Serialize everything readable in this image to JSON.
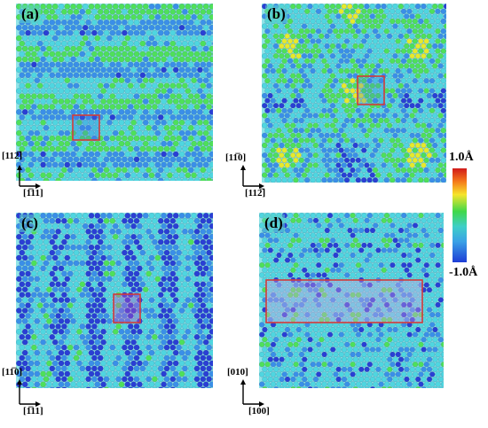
{
  "panels": [
    {
      "id": "a",
      "label": "(a)",
      "pattern": "stripes",
      "highlight": "small-square"
    },
    {
      "id": "b",
      "label": "(b)",
      "pattern": "hexagonal-domains",
      "highlight": "small-square"
    },
    {
      "id": "c",
      "label": "(c)",
      "pattern": "vertical-bands",
      "highlight": "small-square"
    },
    {
      "id": "d",
      "label": "(d)",
      "pattern": "grid-clusters",
      "highlight": "wide-rectangle"
    }
  ],
  "axes": {
    "a": {
      "vertical": "[11̅ 2̅]",
      "vertical_text": "[112̅]",
      "horizontal": "[1̅11]"
    },
    "b": {
      "vertical": "[11̅0]",
      "horizontal": "[112̅]"
    },
    "c": {
      "vertical": "[11̅0]",
      "horizontal": "[1̅11]"
    },
    "d": {
      "vertical": "[010]",
      "horizontal": "[100]"
    }
  },
  "colorbar": {
    "max_label": "1.0Å",
    "min_label": "-1.0Å",
    "colors": [
      "#d11a1a",
      "#f57a1a",
      "#f6e52b",
      "#3fd84a",
      "#3fcfc8",
      "#3aa1e6",
      "#1e3dd6"
    ]
  },
  "highlight_color": "#d23a3a",
  "atom_colors": {
    "cyan": "#4fd6e0",
    "blue": "#3a8fe8",
    "deep": "#2a3fd4",
    "green": "#4ee05a",
    "yellow": "#e6ea2c"
  }
}
